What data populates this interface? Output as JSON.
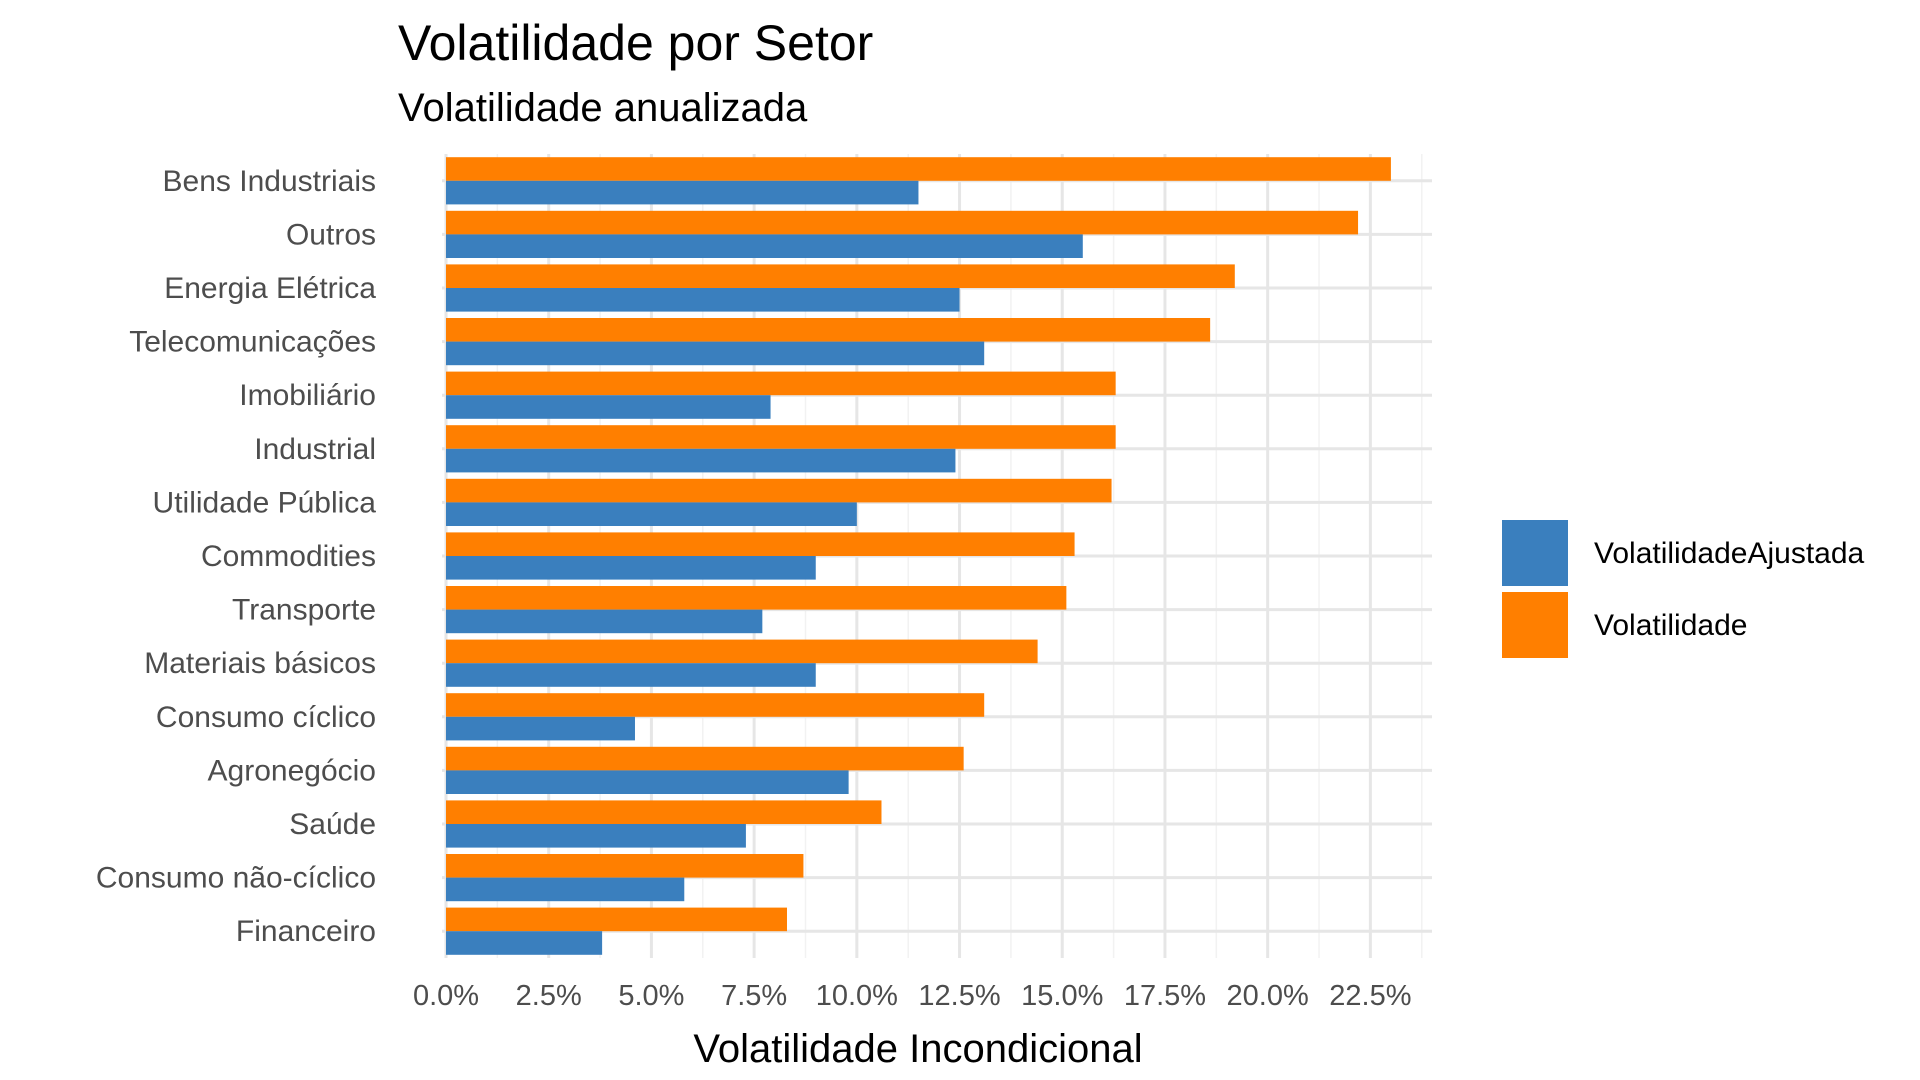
{
  "chart_data": {
    "type": "bar",
    "orientation": "horizontal",
    "title": "Volatilidade por Setor",
    "subtitle": "Volatilidade anualizada",
    "xlabel": "Volatilidade Incondicional",
    "ylabel": "",
    "xlim": [
      0,
      0.24
    ],
    "xticks": [
      0,
      0.025,
      0.05,
      0.075,
      0.1,
      0.125,
      0.15,
      0.175,
      0.2,
      0.225
    ],
    "xtick_labels": [
      "0.0%",
      "2.5%",
      "5.0%",
      "7.5%",
      "10.0%",
      "12.5%",
      "15.0%",
      "17.5%",
      "20.0%",
      "22.5%"
    ],
    "grid": true,
    "legend_position": "right",
    "categories": [
      "Bens Industriais",
      "Outros",
      "Energia Elétrica",
      "Telecomunicações",
      "Imobiliário",
      "Industrial",
      "Utilidade Pública",
      "Commodities",
      "Transporte",
      "Materiais básicos",
      "Consumo cíclico",
      "Agronegócio",
      "Saúde",
      "Consumo não-cíclico",
      "Financeiro"
    ],
    "series": [
      {
        "name": "VolatilidadeAjustada",
        "color": "#3A7FBE",
        "values": [
          0.115,
          0.155,
          0.125,
          0.131,
          0.079,
          0.124,
          0.1,
          0.09,
          0.077,
          0.09,
          0.046,
          0.098,
          0.073,
          0.058,
          0.038
        ]
      },
      {
        "name": "Volatilidade",
        "color": "#FF7F00",
        "values": [
          0.23,
          0.222,
          0.192,
          0.186,
          0.163,
          0.163,
          0.162,
          0.153,
          0.151,
          0.144,
          0.131,
          0.126,
          0.106,
          0.087,
          0.083
        ]
      }
    ]
  }
}
